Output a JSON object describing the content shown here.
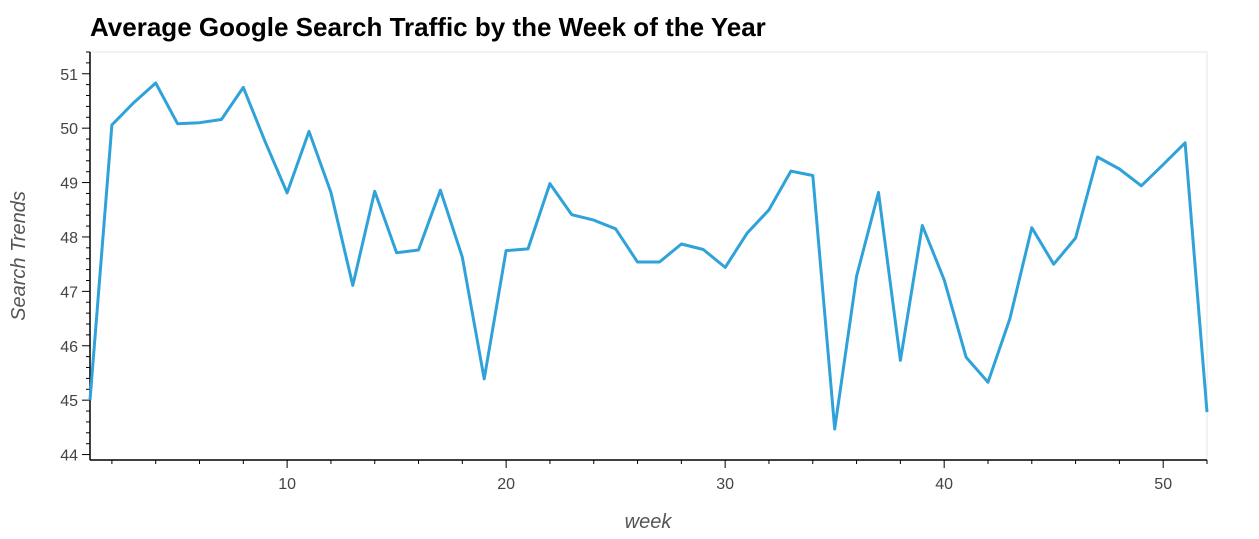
{
  "chart_data": {
    "type": "line",
    "title": "Average Google Search Traffic by the Week of the Year",
    "xlabel": "week",
    "ylabel": "Search Trends",
    "xlim": [
      1,
      52
    ],
    "ylim": [
      43.9,
      51.4
    ],
    "x_ticks": [
      10,
      20,
      30,
      40,
      50
    ],
    "y_ticks": [
      44,
      45,
      46,
      47,
      48,
      49,
      50,
      51
    ],
    "grid": false,
    "line_color": "#30a2da",
    "series": [
      {
        "x": [
          1,
          2,
          3,
          4,
          5,
          6,
          7,
          8,
          9,
          10,
          11,
          12,
          13,
          14,
          15,
          16,
          17,
          18,
          19,
          20,
          21,
          22,
          23,
          24,
          25,
          26,
          27,
          28,
          29,
          30,
          31,
          32,
          33,
          34,
          35,
          36,
          37,
          38,
          39,
          40,
          41,
          42,
          43,
          44,
          45,
          46,
          47,
          48,
          49,
          50,
          51,
          52
        ],
        "values": [
          45.0,
          50.06,
          50.47,
          50.83,
          50.08,
          50.1,
          50.16,
          50.75,
          49.75,
          48.81,
          49.94,
          48.82,
          47.11,
          48.84,
          47.71,
          47.76,
          48.86,
          47.63,
          45.39,
          47.75,
          47.78,
          48.98,
          48.41,
          48.31,
          48.15,
          47.54,
          47.54,
          47.87,
          47.77,
          47.44,
          48.07,
          48.5,
          49.21,
          49.13,
          44.47,
          47.28,
          48.82,
          45.73,
          48.21,
          47.21,
          45.79,
          45.33,
          46.5,
          48.17,
          47.5,
          47.98,
          49.47,
          49.25,
          48.94,
          49.33,
          49.73,
          44.78
        ]
      }
    ]
  }
}
